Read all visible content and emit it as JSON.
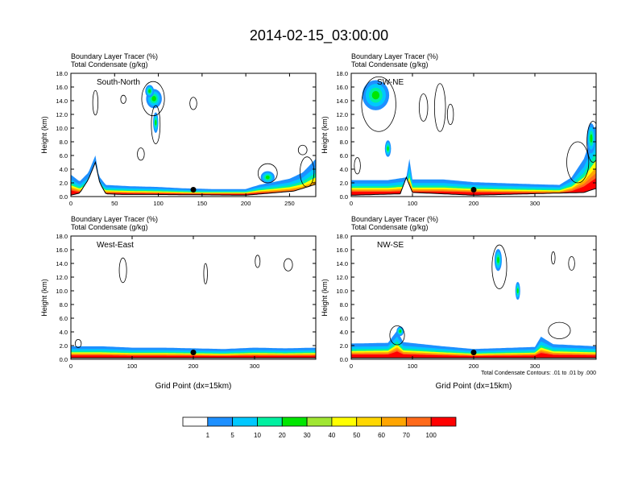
{
  "page_title": "2014-02-15_03:00:00",
  "chart_data": {
    "type": "heatmap",
    "title": "2014-02-15_03:00:00",
    "colorbar": {
      "levels": [
        "1",
        "5",
        "10",
        "20",
        "30",
        "40",
        "50",
        "60",
        "70",
        "100"
      ],
      "colors": [
        "#ffffff",
        "#1e90ff",
        "#00c8ff",
        "#00f0a0",
        "#00e600",
        "#a0e632",
        "#ffff00",
        "#ffd700",
        "#ffa500",
        "#ff6a1a",
        "#ff0000"
      ]
    },
    "contour_note": "Total Condensate Contours: .01 to .01 by .000",
    "panels": [
      {
        "label": "South-North",
        "line1": "Boundary Layer Tracer   (%)",
        "line2": "Total Condensate   (g/kg)",
        "xlim": [
          0,
          280
        ],
        "xticks": [
          0,
          50,
          100,
          150,
          200,
          250
        ],
        "ylim": [
          0,
          18
        ],
        "yticks": [
          "0.0",
          "2.0",
          "4.0",
          "6.0",
          "8.0",
          "10.0",
          "12.0",
          "14.0",
          "16.0",
          "18.0"
        ],
        "ylabel": "Height (km)",
        "xlabel": "",
        "marker_x": 140,
        "plume_top": [
          [
            0,
            3.2
          ],
          [
            10,
            2.2
          ],
          [
            20,
            3.5
          ],
          [
            28,
            6
          ],
          [
            32,
            3
          ],
          [
            40,
            1.7
          ],
          [
            70,
            1.5
          ],
          [
            100,
            1.4
          ],
          [
            130,
            1.2
          ],
          [
            160,
            1.1
          ],
          [
            200,
            1.1
          ],
          [
            215,
            1.7
          ],
          [
            235,
            2.2
          ],
          [
            250,
            2.6
          ],
          [
            265,
            3.5
          ],
          [
            280,
            5.5
          ]
        ],
        "terrain": [
          [
            0,
            0.2
          ],
          [
            10,
            0.5
          ],
          [
            20,
            2.5
          ],
          [
            28,
            5
          ],
          [
            33,
            2
          ],
          [
            40,
            0.4
          ],
          [
            60,
            0.3
          ],
          [
            100,
            0.3
          ],
          [
            200,
            0.2
          ],
          [
            255,
            0.8
          ],
          [
            280,
            1.8
          ]
        ],
        "blobs": [
          [
            95,
            14.3,
            9,
            1.4
          ],
          [
            90,
            15.4,
            5,
            0.9
          ],
          [
            97,
            10.8,
            3,
            1.5
          ],
          [
            225,
            2.8,
            8,
            0.9
          ]
        ],
        "contours": [
          [
            94,
            14.3,
            13,
            2.5
          ],
          [
            97,
            10.5,
            5,
            2.8
          ],
          [
            28,
            13.7,
            3,
            1.8
          ],
          [
            60,
            14.2,
            3,
            0.6
          ],
          [
            140,
            13.6,
            4,
            0.9
          ],
          [
            80,
            6.2,
            4,
            0.9
          ],
          [
            265,
            6.8,
            5,
            0.7
          ],
          [
            225,
            3.4,
            11,
            1.4
          ],
          [
            270,
            3.6,
            8,
            2.2
          ]
        ]
      },
      {
        "label": "SW-NE",
        "line1": "Boundary Layer Tracer   (%)",
        "line2": "Total Condensate   (g/kg)",
        "xlim": [
          0,
          400
        ],
        "xticks": [
          0,
          100,
          200,
          300
        ],
        "ylim": [
          0,
          18
        ],
        "yticks": [
          "0.0",
          "2.0",
          "4.0",
          "6.0",
          "8.0",
          "10.0",
          "12.0",
          "14.0",
          "16.0",
          "18.0"
        ],
        "ylabel": "Height (km)",
        "xlabel": "",
        "marker_x": 200,
        "plume_top": [
          [
            0,
            2.4
          ],
          [
            60,
            2.4
          ],
          [
            90,
            2.8
          ],
          [
            95,
            5.5
          ],
          [
            100,
            2.5
          ],
          [
            150,
            2.5
          ],
          [
            200,
            2.1
          ],
          [
            300,
            1.8
          ],
          [
            340,
            1.7
          ],
          [
            360,
            2.8
          ],
          [
            380,
            5.5
          ],
          [
            400,
            10.5
          ]
        ],
        "terrain": [
          [
            0,
            0.2
          ],
          [
            80,
            0.4
          ],
          [
            90,
            2.8
          ],
          [
            100,
            0.6
          ],
          [
            200,
            0.2
          ],
          [
            380,
            0.6
          ],
          [
            400,
            1.2
          ]
        ],
        "blobs": [
          [
            40,
            14.8,
            22,
            2.2
          ],
          [
            60,
            7,
            5,
            1.2
          ],
          [
            392,
            8.5,
            7,
            2.2
          ]
        ],
        "contours": [
          [
            45,
            13.5,
            28,
            4
          ],
          [
            118,
            13,
            7,
            2
          ],
          [
            145,
            13,
            9,
            3.5
          ],
          [
            162,
            12,
            5,
            1.5
          ],
          [
            10,
            4.5,
            5,
            1.2
          ],
          [
            370,
            5,
            18,
            3
          ],
          [
            395,
            8,
            10,
            3
          ]
        ]
      },
      {
        "label": "West-East",
        "line1": "Boundary Layer Tracer   (%)",
        "line2": "Total Condensate   (g/kg)",
        "xlim": [
          0,
          400
        ],
        "xticks": [
          0,
          100,
          200,
          300
        ],
        "ylim": [
          0,
          18
        ],
        "yticks": [
          "0.0",
          "2.0",
          "4.0",
          "6.0",
          "8.0",
          "10.0",
          "12.0",
          "14.0",
          "16.0",
          "18.0"
        ],
        "ylabel": "Height (km)",
        "xlabel": "Grid Point (dx=15km)",
        "marker_x": 200,
        "plume_top": [
          [
            0,
            1.9
          ],
          [
            50,
            1.9
          ],
          [
            100,
            1.7
          ],
          [
            150,
            1.7
          ],
          [
            200,
            1.6
          ],
          [
            250,
            1.5
          ],
          [
            300,
            1.7
          ],
          [
            350,
            1.6
          ],
          [
            400,
            1.7
          ]
        ],
        "terrain": [
          [
            0,
            0.2
          ],
          [
            400,
            0.2
          ]
        ],
        "blobs": [],
        "contours": [
          [
            85,
            13,
            6,
            1.8
          ],
          [
            220,
            12.5,
            3,
            1.5
          ],
          [
            305,
            14.3,
            4,
            0.9
          ],
          [
            355,
            13.8,
            7,
            0.9
          ],
          [
            12,
            2.3,
            5,
            0.6
          ]
        ]
      },
      {
        "label": "NW-SE",
        "line1": "Boundary Layer Tracer   (%)",
        "line2": "Total Condensate   (g/kg)",
        "xlim": [
          0,
          400
        ],
        "xticks": [
          0,
          100,
          200,
          300
        ],
        "ylim": [
          0,
          18
        ],
        "yticks": [
          "0.0",
          "2.0",
          "4.0",
          "6.0",
          "8.0",
          "10.0",
          "12.0",
          "14.0",
          "16.0",
          "18.0"
        ],
        "ylabel": "Height (km)",
        "xlabel": "Grid Point (dx=15km)",
        "marker_x": 200,
        "plume_top": [
          [
            0,
            2.3
          ],
          [
            60,
            2.4
          ],
          [
            75,
            4.2
          ],
          [
            85,
            2.5
          ],
          [
            150,
            1.9
          ],
          [
            200,
            1.5
          ],
          [
            300,
            1.8
          ],
          [
            310,
            3.3
          ],
          [
            330,
            2.2
          ],
          [
            400,
            1.9
          ]
        ],
        "terrain": [
          [
            0,
            0.2
          ],
          [
            400,
            0.2
          ]
        ],
        "blobs": [
          [
            240,
            14.5,
            6,
            1.6
          ],
          [
            272,
            10,
            4,
            1.3
          ],
          [
            80,
            4.1,
            6,
            0.7
          ]
        ],
        "contours": [
          [
            242,
            13.5,
            12,
            3.2
          ],
          [
            330,
            14.8,
            3,
            0.9
          ],
          [
            360,
            14,
            5,
            1
          ],
          [
            340,
            4.2,
            18,
            1.2
          ],
          [
            75,
            3.5,
            12,
            1.4
          ]
        ]
      }
    ]
  }
}
